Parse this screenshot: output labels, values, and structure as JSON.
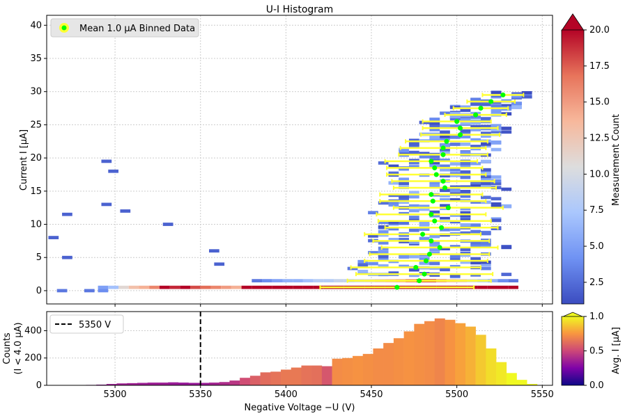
{
  "figure": {
    "title": "U-I Histogram"
  },
  "colors": {
    "errorbar": "#ffff33",
    "marker": "#00ff00",
    "grid": "#cccccc",
    "vline": "#000000",
    "main_cmap": [
      "#3b4cc0",
      "#6f92f3",
      "#aac7fd",
      "#dddddd",
      "#f7b89c",
      "#e7745b",
      "#b40426"
    ],
    "bottom_cmap": [
      "#0d0887",
      "#7e03a8",
      "#cc4778",
      "#f89540",
      "#f0f921"
    ]
  },
  "chart_data": [
    {
      "id": "main_histogram",
      "type": "heatmap",
      "title": "U-I Histogram",
      "xlabel": "",
      "ylabel": "Current I [μA]",
      "xlim": [
        5260,
        5556
      ],
      "ylim": [
        -2,
        41.5
      ],
      "x_ticks": [
        5300,
        5350,
        5400,
        5450,
        5500,
        5550
      ],
      "y_ticks": [
        0,
        5,
        10,
        15,
        20,
        25,
        30,
        35,
        40
      ],
      "y_tick_labels": [
        "0",
        "5",
        "10",
        "15",
        "20",
        "25",
        "30",
        "35",
        "40"
      ],
      "grid": true,
      "legend": {
        "position": "top-left",
        "entries": [
          "Mean 1.0 μA Binned Data"
        ]
      },
      "colorbar": {
        "label": "Measurement Count",
        "range": [
          1,
          20
        ],
        "ticks": [
          2.5,
          5.0,
          7.5,
          10.0,
          12.5,
          15.0,
          17.5,
          20.0
        ],
        "tick_labels": [
          "2.5",
          "5.0",
          "7.5",
          "10.0",
          "12.5",
          "15.0",
          "17.5",
          "20.0"
        ],
        "extend": "max"
      },
      "bottom_row": {
        "y": 0.5,
        "x": [
          5290,
          5296,
          5302,
          5308,
          5314,
          5320,
          5326,
          5332,
          5338,
          5344,
          5350,
          5356,
          5362,
          5368,
          5374,
          5380,
          5386,
          5392,
          5398,
          5404,
          5410,
          5416,
          5422,
          5428,
          5434,
          5440,
          5446,
          5452,
          5458,
          5464,
          5470,
          5476,
          5482,
          5488,
          5494,
          5500,
          5506,
          5512,
          5518,
          5524,
          5530
        ],
        "values": [
          5,
          7,
          11,
          13,
          14,
          16,
          20,
          19,
          20,
          18,
          17,
          16,
          15,
          14,
          20,
          20,
          20,
          20,
          20,
          20,
          20,
          20,
          20,
          20,
          20,
          20,
          20,
          20,
          20,
          20,
          20,
          20,
          20,
          20,
          20,
          20,
          20,
          20,
          20,
          20,
          20
        ]
      },
      "secondary_row": {
        "y": 1.5,
        "x": [
          5380,
          5386,
          5392,
          5398,
          5404,
          5410,
          5416,
          5422,
          5428,
          5434,
          5440,
          5446,
          5452,
          5458,
          5464,
          5470,
          5476,
          5482,
          5488,
          5494,
          5500,
          5506,
          5512,
          5518,
          5524,
          5530
        ],
        "values": [
          3,
          4,
          5,
          6,
          6,
          7,
          8,
          8,
          9,
          9,
          10,
          11,
          12,
          13,
          14,
          16,
          18,
          18,
          15,
          13,
          12,
          10,
          8,
          6,
          4,
          3
        ]
      },
      "points_extra": [
        {
          "x": 5266,
          "y": 0,
          "count": 3
        },
        {
          "x": 5282,
          "y": 0,
          "count": 3
        },
        {
          "x": 5290,
          "y": 0,
          "count": 4
        },
        {
          "x": 5269,
          "y": 5,
          "count": 2
        },
        {
          "x": 5269,
          "y": 11.5,
          "count": 2
        },
        {
          "x": 5261,
          "y": 8,
          "count": 2
        },
        {
          "x": 5292,
          "y": 19.5,
          "count": 2
        },
        {
          "x": 5296,
          "y": 18,
          "count": 2
        },
        {
          "x": 5292,
          "y": 13,
          "count": 2
        },
        {
          "x": 5303,
          "y": 12,
          "count": 2
        },
        {
          "x": 5328,
          "y": 10,
          "count": 2
        },
        {
          "x": 5355,
          "y": 6,
          "count": 2
        },
        {
          "x": 5358,
          "y": 4,
          "count": 2
        }
      ],
      "binned_means": {
        "y": [
          0.5,
          1.5,
          2.5,
          3.5,
          4.5,
          5.5,
          6.5,
          7.5,
          8.5,
          9.5,
          10.5,
          11.5,
          12.5,
          13.5,
          14.5,
          15.5,
          16.5,
          17.5,
          18.5,
          19.5,
          20.5,
          21.5,
          22.5,
          23.5,
          24.5,
          25.5,
          26.5,
          27.5,
          28.5,
          29.5
        ],
        "x": [
          5465,
          5478,
          5481,
          5476,
          5482,
          5484,
          5490,
          5485,
          5480,
          5491,
          5487,
          5485,
          5495,
          5486,
          5485,
          5493,
          5492,
          5488,
          5487,
          5485,
          5492,
          5492,
          5494,
          5502,
          5502,
          5500,
          5511,
          5514,
          5520,
          5527
        ],
        "xerr": [
          45,
          42,
          40,
          38,
          36,
          35,
          34,
          34,
          34,
          33,
          33,
          32,
          32,
          31,
          30,
          30,
          30,
          29,
          28,
          27,
          26,
          25,
          24,
          23,
          22,
          20,
          18,
          16,
          14,
          12
        ]
      }
    },
    {
      "id": "bottom_histogram",
      "type": "bar",
      "xlabel": "Negative Voltage −U (V)",
      "ylabel": "Counts\n(I < 4.0 μA)",
      "xlim": [
        5260,
        5556
      ],
      "ylim": [
        0,
        540
      ],
      "x_ticks": [
        5300,
        5350,
        5400,
        5450,
        5500,
        5550
      ],
      "y_ticks": [
        0,
        200,
        400
      ],
      "y_tick_labels": [
        "0",
        "200",
        "400"
      ],
      "grid": true,
      "legend": {
        "position": "top-left",
        "entries": [
          "5350 V"
        ]
      },
      "vline": {
        "x": 5350,
        "label": "5350 V"
      },
      "colorbar": {
        "label": "Avg. I [μA]",
        "range": [
          0,
          1
        ],
        "ticks": [
          0.0,
          0.5,
          1.0
        ],
        "tick_labels": [
          "0.0",
          "0.5",
          "1.0"
        ],
        "extend": "max"
      },
      "bin_width": 6,
      "bins": [
        {
          "x": 5286,
          "count": 3,
          "avg_i": 0.3
        },
        {
          "x": 5292,
          "count": 5,
          "avg_i": 0.32
        },
        {
          "x": 5298,
          "count": 10,
          "avg_i": 0.35
        },
        {
          "x": 5304,
          "count": 14,
          "avg_i": 0.36
        },
        {
          "x": 5310,
          "count": 16,
          "avg_i": 0.36
        },
        {
          "x": 5316,
          "count": 18,
          "avg_i": 0.35
        },
        {
          "x": 5322,
          "count": 20,
          "avg_i": 0.35
        },
        {
          "x": 5328,
          "count": 20,
          "avg_i": 0.35
        },
        {
          "x": 5334,
          "count": 22,
          "avg_i": 0.34
        },
        {
          "x": 5340,
          "count": 20,
          "avg_i": 0.33
        },
        {
          "x": 5346,
          "count": 18,
          "avg_i": 0.33
        },
        {
          "x": 5352,
          "count": 18,
          "avg_i": 0.34
        },
        {
          "x": 5358,
          "count": 20,
          "avg_i": 0.37
        },
        {
          "x": 5364,
          "count": 24,
          "avg_i": 0.4
        },
        {
          "x": 5370,
          "count": 35,
          "avg_i": 0.44
        },
        {
          "x": 5376,
          "count": 55,
          "avg_i": 0.52
        },
        {
          "x": 5382,
          "count": 70,
          "avg_i": 0.58
        },
        {
          "x": 5388,
          "count": 95,
          "avg_i": 0.62
        },
        {
          "x": 5394,
          "count": 100,
          "avg_i": 0.64
        },
        {
          "x": 5400,
          "count": 115,
          "avg_i": 0.66
        },
        {
          "x": 5406,
          "count": 130,
          "avg_i": 0.66
        },
        {
          "x": 5412,
          "count": 145,
          "avg_i": 0.64
        },
        {
          "x": 5418,
          "count": 145,
          "avg_i": 0.63
        },
        {
          "x": 5424,
          "count": 140,
          "avg_i": 0.55
        },
        {
          "x": 5430,
          "count": 195,
          "avg_i": 0.72
        },
        {
          "x": 5436,
          "count": 200,
          "avg_i": 0.73
        },
        {
          "x": 5442,
          "count": 215,
          "avg_i": 0.74
        },
        {
          "x": 5448,
          "count": 230,
          "avg_i": 0.73
        },
        {
          "x": 5454,
          "count": 270,
          "avg_i": 0.72
        },
        {
          "x": 5460,
          "count": 310,
          "avg_i": 0.72
        },
        {
          "x": 5466,
          "count": 345,
          "avg_i": 0.73
        },
        {
          "x": 5472,
          "count": 395,
          "avg_i": 0.74
        },
        {
          "x": 5478,
          "count": 450,
          "avg_i": 0.73
        },
        {
          "x": 5484,
          "count": 470,
          "avg_i": 0.72
        },
        {
          "x": 5490,
          "count": 490,
          "avg_i": 0.7
        },
        {
          "x": 5496,
          "count": 480,
          "avg_i": 0.74
        },
        {
          "x": 5502,
          "count": 455,
          "avg_i": 0.78
        },
        {
          "x": 5508,
          "count": 430,
          "avg_i": 0.82
        },
        {
          "x": 5514,
          "count": 370,
          "avg_i": 0.88
        },
        {
          "x": 5520,
          "count": 270,
          "avg_i": 0.93
        },
        {
          "x": 5526,
          "count": 170,
          "avg_i": 0.96
        },
        {
          "x": 5532,
          "count": 90,
          "avg_i": 1.0
        },
        {
          "x": 5538,
          "count": 40,
          "avg_i": 1.0
        },
        {
          "x": 5544,
          "count": 10,
          "avg_i": 1.0
        }
      ]
    }
  ]
}
